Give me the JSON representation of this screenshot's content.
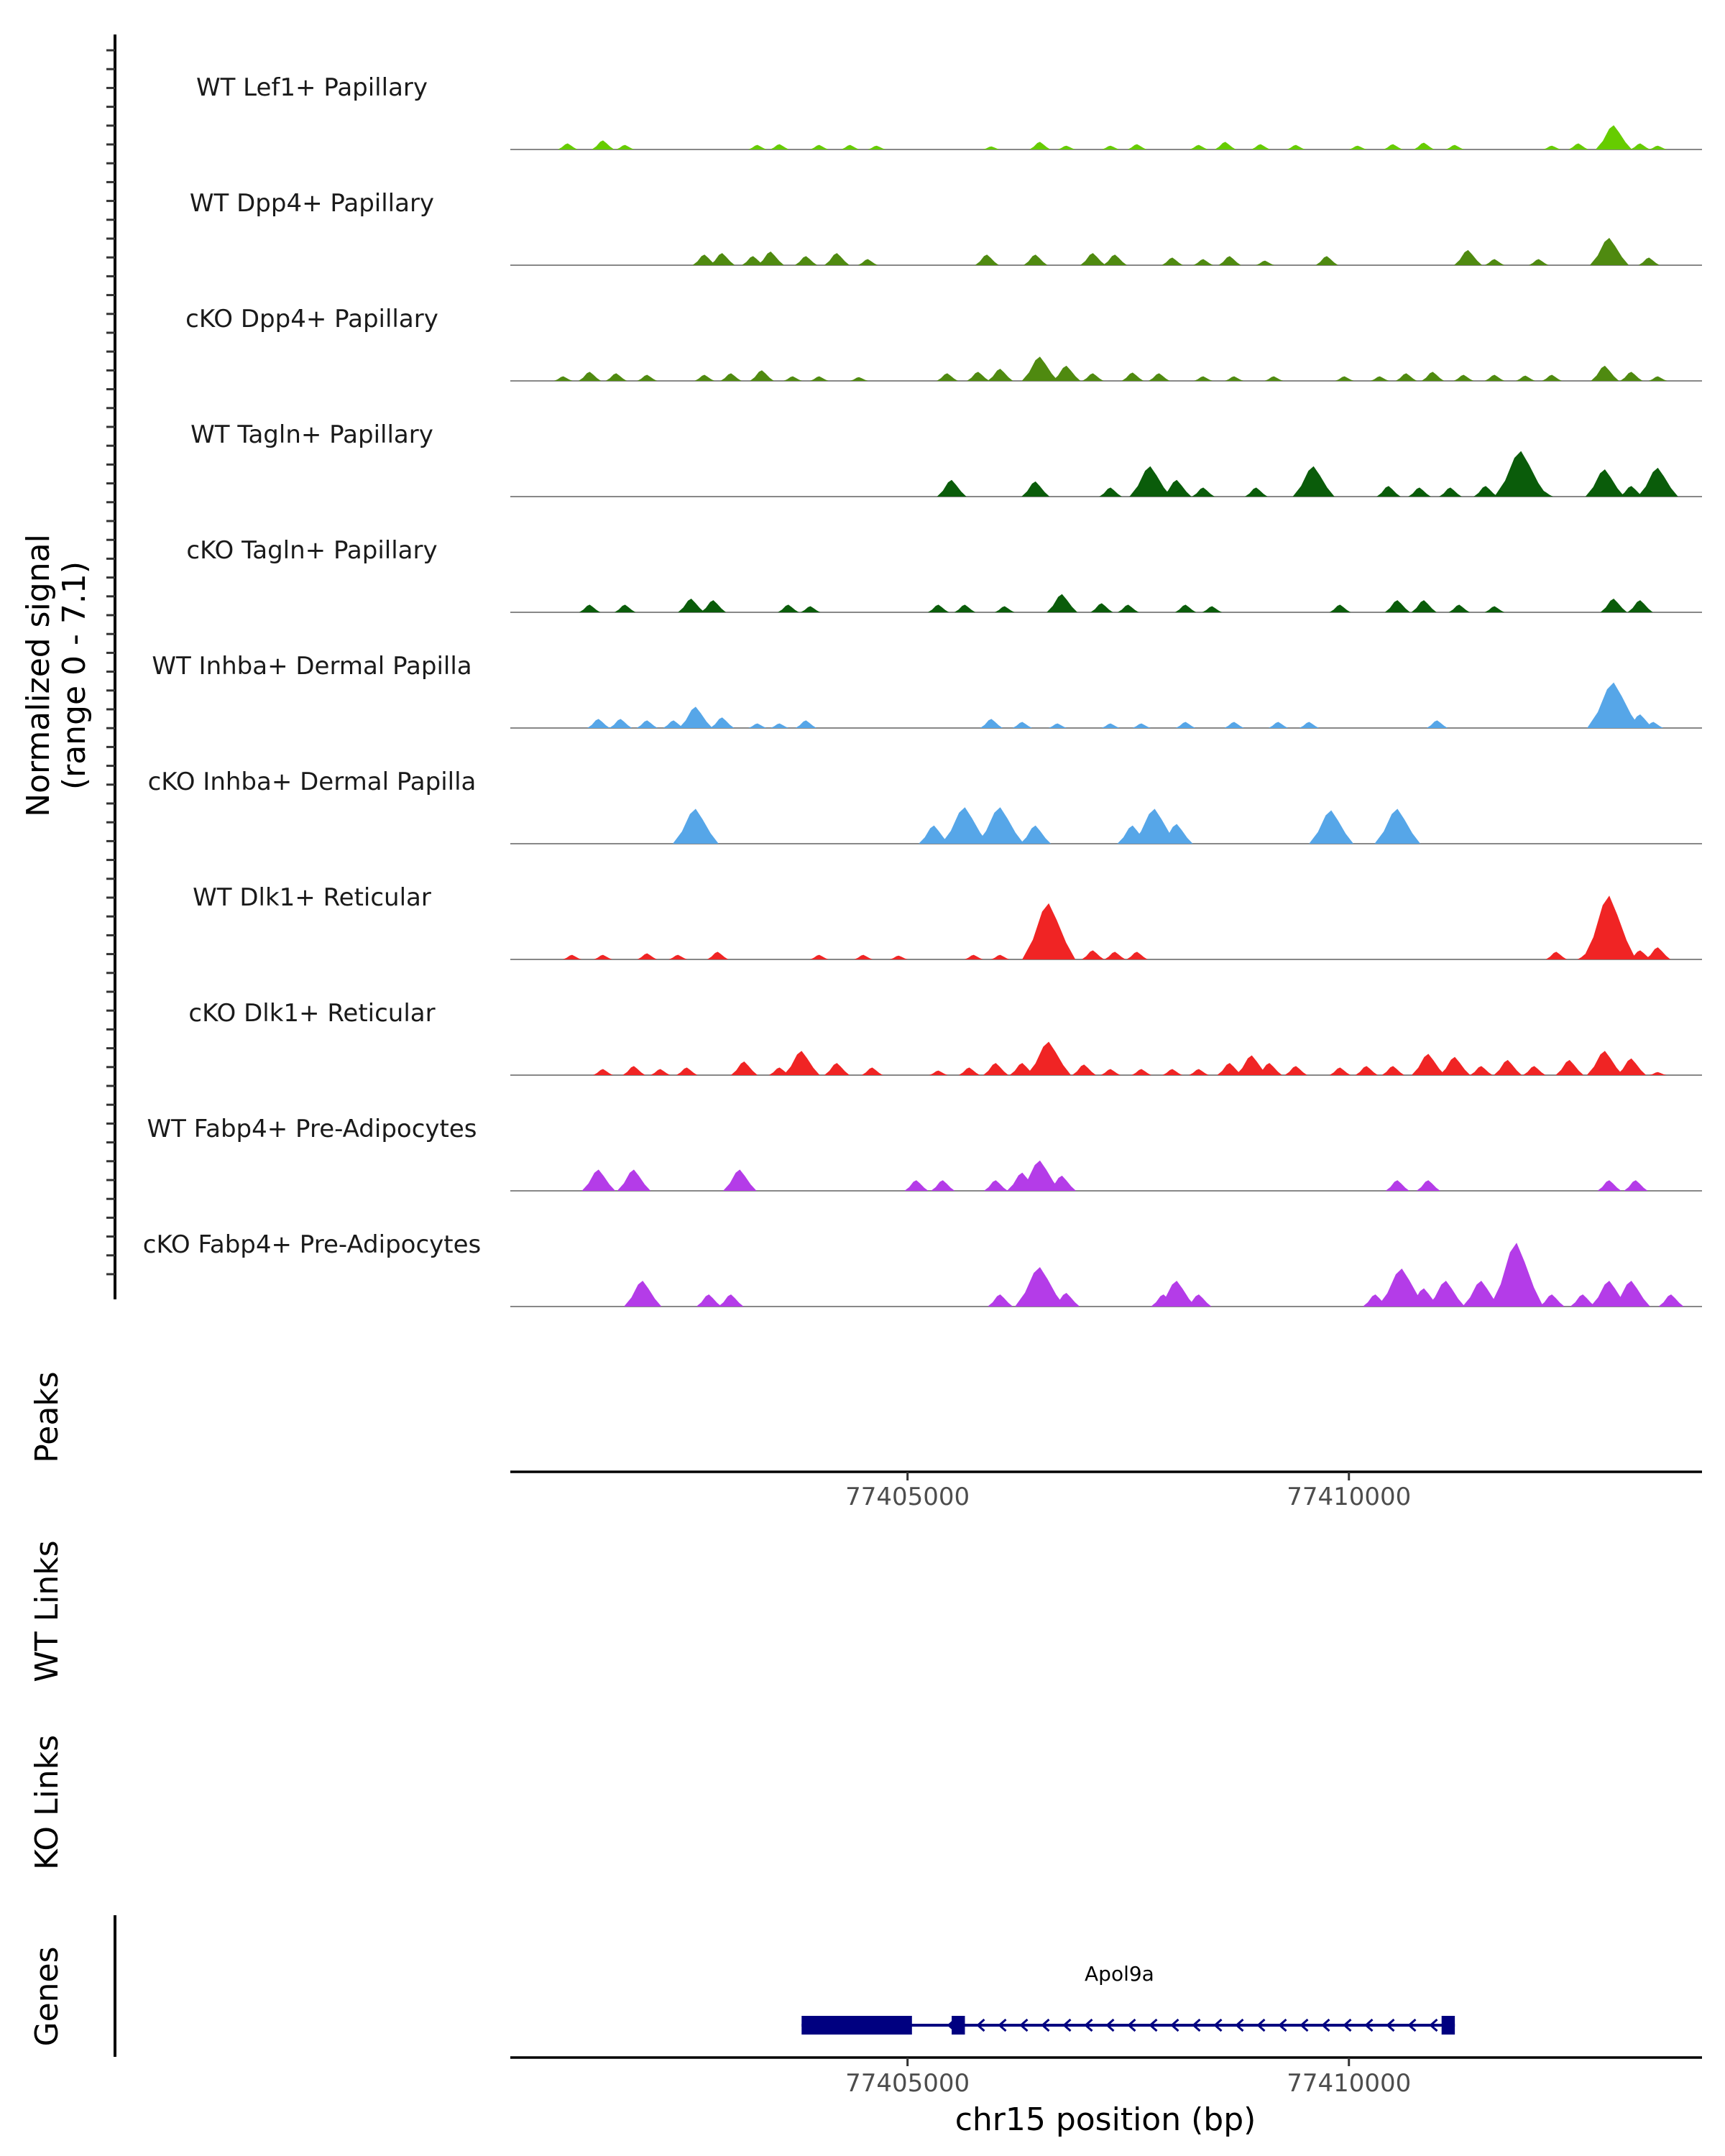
{
  "chart_data": {
    "type": "area",
    "title": "",
    "ylabel": "Normalized signal",
    "ylabel_range": "(range 0 - 7.1)",
    "y_range": [
      0,
      7.1
    ],
    "x_range": [
      77400500,
      77414000
    ],
    "xlabel": "chr15 position (bp)",
    "x_ticks": [
      77405000,
      77410000
    ],
    "x_tick_labels": [
      "77405000",
      "77410000"
    ],
    "tracks": [
      {
        "name": "WT Lef1+ Papillary",
        "color": "#66cc00",
        "peaks": [
          [
            77401150,
            0.4
          ],
          [
            77401550,
            0.6
          ],
          [
            77401800,
            0.3
          ],
          [
            77403300,
            0.3
          ],
          [
            77403550,
            0.35
          ],
          [
            77404000,
            0.3
          ],
          [
            77404350,
            0.3
          ],
          [
            77404650,
            0.25
          ],
          [
            77405950,
            0.2
          ],
          [
            77406500,
            0.5
          ],
          [
            77406800,
            0.25
          ],
          [
            77407300,
            0.25
          ],
          [
            77407600,
            0.35
          ],
          [
            77408300,
            0.3
          ],
          [
            77408600,
            0.5
          ],
          [
            77409000,
            0.35
          ],
          [
            77409400,
            0.3
          ],
          [
            77410100,
            0.25
          ],
          [
            77410500,
            0.35
          ],
          [
            77410850,
            0.45
          ],
          [
            77411200,
            0.3
          ],
          [
            77412300,
            0.25
          ],
          [
            77412600,
            0.4
          ],
          [
            77413000,
            1.6
          ],
          [
            77413300,
            0.4
          ],
          [
            77413500,
            0.25
          ]
        ]
      },
      {
        "name": "WT Dpp4+ Papillary",
        "color": "#4f8a10",
        "peaks": [
          [
            77402700,
            0.7
          ],
          [
            77402900,
            0.8
          ],
          [
            77403250,
            0.6
          ],
          [
            77403450,
            0.9
          ],
          [
            77403850,
            0.6
          ],
          [
            77404200,
            0.8
          ],
          [
            77404550,
            0.4
          ],
          [
            77405900,
            0.7
          ],
          [
            77406450,
            0.7
          ],
          [
            77407100,
            0.8
          ],
          [
            77407350,
            0.7
          ],
          [
            77408000,
            0.5
          ],
          [
            77408350,
            0.4
          ],
          [
            77408650,
            0.6
          ],
          [
            77409050,
            0.3
          ],
          [
            77409750,
            0.6
          ],
          [
            77411350,
            1.0
          ],
          [
            77411650,
            0.4
          ],
          [
            77412150,
            0.4
          ],
          [
            77412950,
            1.8
          ],
          [
            77413400,
            0.5
          ]
        ]
      },
      {
        "name": "cKO Dpp4+ Papillary",
        "color": "#4f8a10",
        "peaks": [
          [
            77401100,
            0.3
          ],
          [
            77401400,
            0.6
          ],
          [
            77401700,
            0.5
          ],
          [
            77402050,
            0.4
          ],
          [
            77402700,
            0.4
          ],
          [
            77403000,
            0.5
          ],
          [
            77403350,
            0.7
          ],
          [
            77403700,
            0.3
          ],
          [
            77404000,
            0.3
          ],
          [
            77404450,
            0.25
          ],
          [
            77405450,
            0.5
          ],
          [
            77405800,
            0.6
          ],
          [
            77406050,
            0.8
          ],
          [
            77406500,
            1.6
          ],
          [
            77406800,
            1.0
          ],
          [
            77407100,
            0.5
          ],
          [
            77407550,
            0.55
          ],
          [
            77407850,
            0.5
          ],
          [
            77408350,
            0.3
          ],
          [
            77408700,
            0.3
          ],
          [
            77409150,
            0.3
          ],
          [
            77409950,
            0.3
          ],
          [
            77410350,
            0.3
          ],
          [
            77410650,
            0.5
          ],
          [
            77410950,
            0.6
          ],
          [
            77411300,
            0.4
          ],
          [
            77411650,
            0.4
          ],
          [
            77412000,
            0.35
          ],
          [
            77412300,
            0.4
          ],
          [
            77412900,
            1.0
          ],
          [
            77413200,
            0.6
          ],
          [
            77413500,
            0.3
          ]
        ]
      },
      {
        "name": "WT Tagln+ Papillary",
        "color": "#0a5c0a",
        "peaks": [
          [
            77405500,
            1.1
          ],
          [
            77406450,
            1.0
          ],
          [
            77407300,
            0.6
          ],
          [
            77407750,
            2.0
          ],
          [
            77408050,
            1.1
          ],
          [
            77408350,
            0.6
          ],
          [
            77408950,
            0.6
          ],
          [
            77409600,
            2.0
          ],
          [
            77410450,
            0.7
          ],
          [
            77410800,
            0.6
          ],
          [
            77411150,
            0.6
          ],
          [
            77411550,
            0.7
          ],
          [
            77411950,
            3.0
          ],
          [
            77412200,
            0.4
          ],
          [
            77412900,
            1.8
          ],
          [
            77413200,
            0.7
          ],
          [
            77413500,
            1.9
          ]
        ]
      },
      {
        "name": "cKO Tagln+ Papillary",
        "color": "#0a5c0a",
        "peaks": [
          [
            77401400,
            0.5
          ],
          [
            77401800,
            0.5
          ],
          [
            77402550,
            0.9
          ],
          [
            77402800,
            0.8
          ],
          [
            77403650,
            0.5
          ],
          [
            77403900,
            0.4
          ],
          [
            77405350,
            0.5
          ],
          [
            77405650,
            0.5
          ],
          [
            77406100,
            0.4
          ],
          [
            77406750,
            1.2
          ],
          [
            77407200,
            0.6
          ],
          [
            77407500,
            0.5
          ],
          [
            77408150,
            0.5
          ],
          [
            77408450,
            0.4
          ],
          [
            77409900,
            0.5
          ],
          [
            77410550,
            0.8
          ],
          [
            77410850,
            0.8
          ],
          [
            77411250,
            0.5
          ],
          [
            77411650,
            0.4
          ],
          [
            77413000,
            0.9
          ],
          [
            77413300,
            0.8
          ]
        ]
      },
      {
        "name": "WT Inhba+ Dermal Papilla",
        "color": "#56a6e8",
        "peaks": [
          [
            77401500,
            0.6
          ],
          [
            77401750,
            0.6
          ],
          [
            77402050,
            0.5
          ],
          [
            77402350,
            0.5
          ],
          [
            77402600,
            1.4
          ],
          [
            77402900,
            0.7
          ],
          [
            77403300,
            0.3
          ],
          [
            77403550,
            0.3
          ],
          [
            77403850,
            0.5
          ],
          [
            77405950,
            0.6
          ],
          [
            77406300,
            0.4
          ],
          [
            77406700,
            0.3
          ],
          [
            77407300,
            0.3
          ],
          [
            77407650,
            0.3
          ],
          [
            77408150,
            0.4
          ],
          [
            77408700,
            0.4
          ],
          [
            77409200,
            0.4
          ],
          [
            77409550,
            0.4
          ],
          [
            77411000,
            0.5
          ],
          [
            77413000,
            3.0
          ],
          [
            77413300,
            0.9
          ],
          [
            77413450,
            0.4
          ]
        ]
      },
      {
        "name": "cKO Inhba+ Dermal Papilla",
        "color": "#56a6e8",
        "peaks": [
          [
            77402600,
            2.3
          ],
          [
            77405300,
            1.2
          ],
          [
            77405650,
            2.4
          ],
          [
            77406050,
            2.4
          ],
          [
            77406450,
            1.2
          ],
          [
            77407550,
            1.2
          ],
          [
            77407800,
            2.3
          ],
          [
            77408050,
            1.3
          ],
          [
            77409800,
            2.2
          ],
          [
            77410550,
            2.3
          ]
        ]
      },
      {
        "name": "WT Dlk1+ Reticular",
        "color": "#f02424",
        "peaks": [
          [
            77401200,
            0.3
          ],
          [
            77401550,
            0.3
          ],
          [
            77402050,
            0.4
          ],
          [
            77402400,
            0.3
          ],
          [
            77402850,
            0.5
          ],
          [
            77404000,
            0.3
          ],
          [
            77404500,
            0.3
          ],
          [
            77404900,
            0.25
          ],
          [
            77405750,
            0.3
          ],
          [
            77406050,
            0.3
          ],
          [
            77406600,
            3.7
          ],
          [
            77407100,
            0.6
          ],
          [
            77407350,
            0.5
          ],
          [
            77407600,
            0.5
          ],
          [
            77412350,
            0.5
          ],
          [
            77412700,
            0.4
          ],
          [
            77412950,
            4.2
          ],
          [
            77413300,
            0.6
          ],
          [
            77413500,
            0.8
          ]
        ]
      },
      {
        "name": "cKO Dlk1+ Reticular",
        "color": "#f02424",
        "peaks": [
          [
            77401550,
            0.4
          ],
          [
            77401900,
            0.6
          ],
          [
            77402200,
            0.4
          ],
          [
            77402500,
            0.5
          ],
          [
            77403150,
            0.9
          ],
          [
            77403550,
            0.5
          ],
          [
            77403800,
            1.6
          ],
          [
            77404200,
            0.8
          ],
          [
            77404600,
            0.5
          ],
          [
            77405350,
            0.3
          ],
          [
            77405700,
            0.5
          ],
          [
            77406000,
            0.8
          ],
          [
            77406300,
            0.8
          ],
          [
            77406600,
            2.2
          ],
          [
            77407000,
            0.7
          ],
          [
            77407300,
            0.4
          ],
          [
            77407650,
            0.4
          ],
          [
            77408000,
            0.4
          ],
          [
            77408300,
            0.4
          ],
          [
            77408650,
            0.8
          ],
          [
            77408900,
            1.3
          ],
          [
            77409100,
            0.8
          ],
          [
            77409400,
            0.6
          ],
          [
            77409900,
            0.5
          ],
          [
            77410200,
            0.6
          ],
          [
            77410500,
            0.6
          ],
          [
            77410900,
            1.4
          ],
          [
            77411200,
            1.2
          ],
          [
            77411500,
            0.6
          ],
          [
            77411800,
            1.0
          ],
          [
            77412100,
            0.6
          ],
          [
            77412500,
            1.0
          ],
          [
            77412900,
            1.6
          ],
          [
            77413200,
            1.1
          ],
          [
            77413500,
            0.2
          ]
        ]
      },
      {
        "name": "WT Fabp4+ Pre-Adipocytes",
        "color": "#b43ce8",
        "peaks": [
          [
            77401500,
            1.4
          ],
          [
            77401900,
            1.4
          ],
          [
            77403100,
            1.4
          ],
          [
            77405100,
            0.7
          ],
          [
            77405400,
            0.7
          ],
          [
            77406000,
            0.7
          ],
          [
            77406300,
            1.2
          ],
          [
            77406500,
            2.0
          ],
          [
            77406750,
            1.0
          ],
          [
            77410550,
            0.7
          ],
          [
            77410900,
            0.7
          ],
          [
            77412950,
            0.7
          ],
          [
            77413250,
            0.7
          ]
        ]
      },
      {
        "name": "cKO Fabp4+ Pre-Adipocytes",
        "color": "#b43ce8",
        "peaks": [
          [
            77402000,
            1.7
          ],
          [
            77402750,
            0.8
          ],
          [
            77403000,
            0.8
          ],
          [
            77406050,
            0.8
          ],
          [
            77406500,
            2.6
          ],
          [
            77406800,
            0.9
          ],
          [
            77407900,
            0.8
          ],
          [
            77408050,
            1.7
          ],
          [
            77408300,
            0.8
          ],
          [
            77410300,
            0.8
          ],
          [
            77410600,
            2.5
          ],
          [
            77410850,
            1.2
          ],
          [
            77411100,
            1.7
          ],
          [
            77411500,
            1.7
          ],
          [
            77411900,
            4.2
          ],
          [
            77412300,
            0.8
          ],
          [
            77412650,
            0.8
          ],
          [
            77412950,
            1.7
          ],
          [
            77413200,
            1.7
          ],
          [
            77413650,
            0.8
          ]
        ]
      }
    ],
    "panels": [
      "Peaks",
      "WT Links",
      "KO Links",
      "Genes"
    ],
    "gene": {
      "name": "Apol9a",
      "color": "#000080",
      "start": 77403800,
      "end": 77411200,
      "strand": "-",
      "exons": [
        [
          77403800,
          77405050
        ],
        [
          77405500,
          77405650
        ],
        [
          77411050,
          77411200
        ]
      ]
    }
  }
}
